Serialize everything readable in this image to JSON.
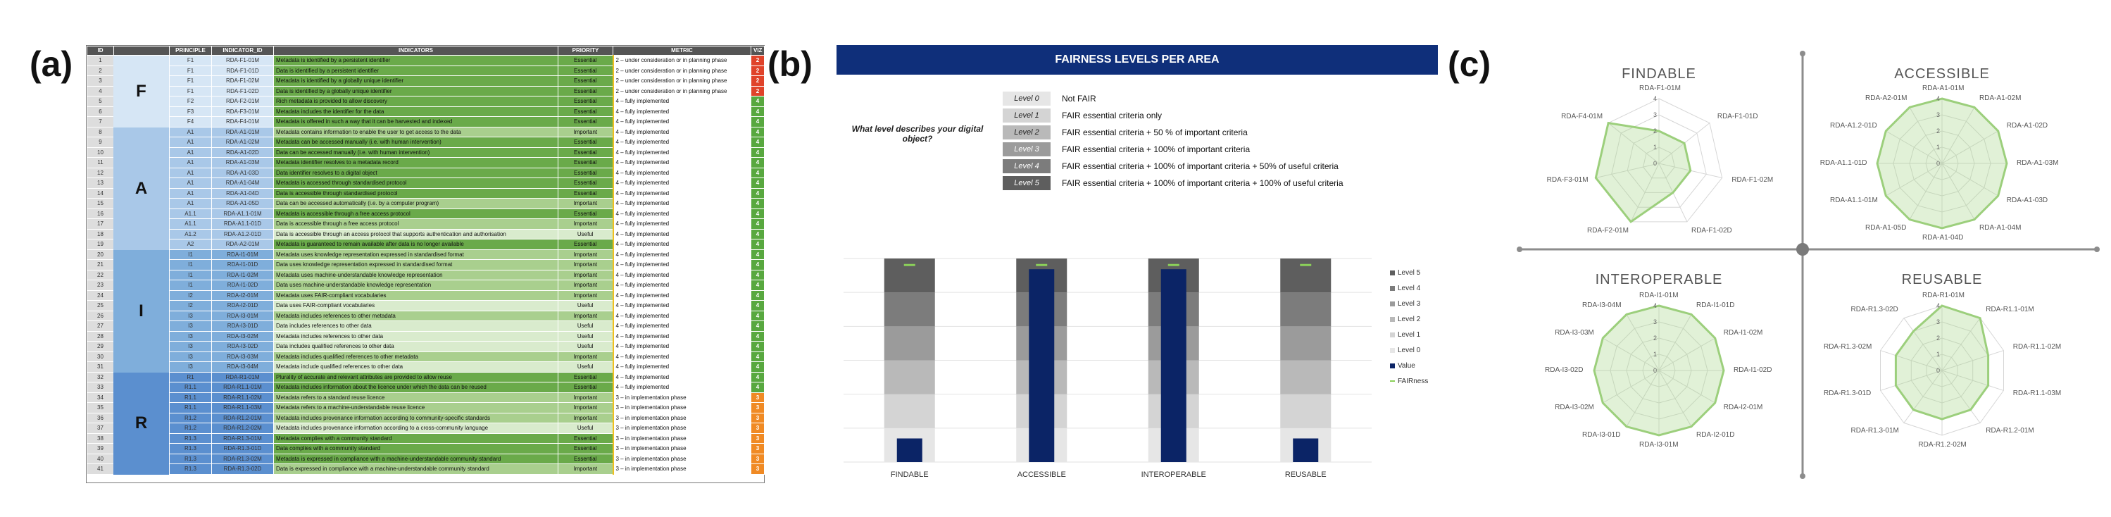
{
  "panels": {
    "a": "(a)",
    "b": "(b)",
    "c": "(c)"
  },
  "table": {
    "headers": [
      "ID",
      "",
      "PRINCIPLE",
      "INDICATOR_ID",
      "INDICATORS",
      "PRIORITY",
      "METRIC",
      "VIZ"
    ],
    "groups": [
      {
        "letter": "F",
        "first": 1,
        "last": 7,
        "color": "#d6e6f5"
      },
      {
        "letter": "A",
        "first": 8,
        "last": 19,
        "color": "#a9c8e8"
      },
      {
        "letter": "I",
        "first": 20,
        "last": 31,
        "color": "#7faedb"
      },
      {
        "letter": "R",
        "first": 32,
        "last": 41,
        "color": "#5b8fcf"
      }
    ],
    "rows": [
      {
        "id": "1",
        "principle": "F1",
        "indicator_id": "RDA-F1-01M",
        "indicator": "Metadata is identified by a persistent identifier",
        "priority": "Essential",
        "metric": "2 – under consideration or in planning phase",
        "viz": "2"
      },
      {
        "id": "2",
        "principle": "F1",
        "indicator_id": "RDA-F1-01D",
        "indicator": "Data is identified by a persistent identifier",
        "priority": "Essential",
        "metric": "2 – under consideration or in planning phase",
        "viz": "2"
      },
      {
        "id": "3",
        "principle": "F1",
        "indicator_id": "RDA-F1-02M",
        "indicator": "Metadata is identified by a globally unique identifier",
        "priority": "Essential",
        "metric": "2 – under consideration or in planning phase",
        "viz": "2"
      },
      {
        "id": "4",
        "principle": "F1",
        "indicator_id": "RDA-F1-02D",
        "indicator": "Data is identified by a globally unique identifier",
        "priority": "Essential",
        "metric": "2 – under consideration or in planning phase",
        "viz": "2"
      },
      {
        "id": "5",
        "principle": "F2",
        "indicator_id": "RDA-F2-01M",
        "indicator": "Rich metadata is provided to allow discovery",
        "priority": "Essential",
        "metric": "4 – fully implemented",
        "viz": "4"
      },
      {
        "id": "6",
        "principle": "F3",
        "indicator_id": "RDA-F3-01M",
        "indicator": "Metadata includes the identifier for the data",
        "priority": "Essential",
        "metric": "4 – fully implemented",
        "viz": "4"
      },
      {
        "id": "7",
        "principle": "F4",
        "indicator_id": "RDA-F4-01M",
        "indicator": "Metadata is offered in such a way that it can be harvested and indexed",
        "priority": "Essential",
        "metric": "4 – fully implemented",
        "viz": "4"
      },
      {
        "id": "8",
        "principle": "A1",
        "indicator_id": "RDA-A1-01M",
        "indicator": "Metadata contains information to enable the user to get access to the data",
        "priority": "Important",
        "metric": "4 – fully implemented",
        "viz": "4"
      },
      {
        "id": "9",
        "principle": "A1",
        "indicator_id": "RDA-A1-02M",
        "indicator": "Metadata can be accessed manually (i.e. with human intervention)",
        "priority": "Essential",
        "metric": "4 – fully implemented",
        "viz": "4"
      },
      {
        "id": "10",
        "principle": "A1",
        "indicator_id": "RDA-A1-02D",
        "indicator": "Data can be accessed manually (i.e. with human intervention)",
        "priority": "Essential",
        "metric": "4 – fully implemented",
        "viz": "4"
      },
      {
        "id": "11",
        "principle": "A1",
        "indicator_id": "RDA-A1-03M",
        "indicator": "Metadata identifier resolves to a metadata record",
        "priority": "Essential",
        "metric": "4 – fully implemented",
        "viz": "4"
      },
      {
        "id": "12",
        "principle": "A1",
        "indicator_id": "RDA-A1-03D",
        "indicator": "Data identifier resolves to a digital object",
        "priority": "Essential",
        "metric": "4 – fully implemented",
        "viz": "4"
      },
      {
        "id": "13",
        "principle": "A1",
        "indicator_id": "RDA-A1-04M",
        "indicator": "Metadata is accessed through standardised protocol",
        "priority": "Essential",
        "metric": "4 – fully implemented",
        "viz": "4"
      },
      {
        "id": "14",
        "principle": "A1",
        "indicator_id": "RDA-A1-04D",
        "indicator": "Data is accessible through standardised protocol",
        "priority": "Essential",
        "metric": "4 – fully implemented",
        "viz": "4"
      },
      {
        "id": "15",
        "principle": "A1",
        "indicator_id": "RDA-A1-05D",
        "indicator": "Data can be accessed automatically (i.e. by a computer program)",
        "priority": "Important",
        "metric": "4 – fully implemented",
        "viz": "4"
      },
      {
        "id": "16",
        "principle": "A1.1",
        "indicator_id": "RDA-A1.1-01M",
        "indicator": "Metadata is accessible through a free access protocol",
        "priority": "Essential",
        "metric": "4 – fully implemented",
        "viz": "4"
      },
      {
        "id": "17",
        "principle": "A1.1",
        "indicator_id": "RDA-A1.1-01D",
        "indicator": "Data is accessible through a free access protocol",
        "priority": "Important",
        "metric": "4 – fully implemented",
        "viz": "4"
      },
      {
        "id": "18",
        "principle": "A1.2",
        "indicator_id": "RDA-A1.2-01D",
        "indicator": "Data is accessible through an access protocol that supports authentication and authorisation",
        "priority": "Useful",
        "metric": "4 – fully implemented",
        "viz": "4"
      },
      {
        "id": "19",
        "principle": "A2",
        "indicator_id": "RDA-A2-01M",
        "indicator": "Metadata is guaranteed to remain available after data is no longer available",
        "priority": "Essential",
        "metric": "4 – fully implemented",
        "viz": "4"
      },
      {
        "id": "20",
        "principle": "I1",
        "indicator_id": "RDA-I1-01M",
        "indicator": "Metadata uses knowledge representation expressed in standardised format",
        "priority": "Important",
        "metric": "4 – fully implemented",
        "viz": "4"
      },
      {
        "id": "21",
        "principle": "I1",
        "indicator_id": "RDA-I1-01D",
        "indicator": "Data uses knowledge representation expressed in standardised format",
        "priority": "Important",
        "metric": "4 – fully implemented",
        "viz": "4"
      },
      {
        "id": "22",
        "principle": "I1",
        "indicator_id": "RDA-I1-02M",
        "indicator": "Metadata uses machine-understandable knowledge representation",
        "priority": "Important",
        "metric": "4 – fully implemented",
        "viz": "4"
      },
      {
        "id": "23",
        "principle": "I1",
        "indicator_id": "RDA-I1-02D",
        "indicator": "Data uses machine-understandable knowledge representation",
        "priority": "Important",
        "metric": "4 – fully implemented",
        "viz": "4"
      },
      {
        "id": "24",
        "principle": "I2",
        "indicator_id": "RDA-I2-01M",
        "indicator": "Metadata uses FAIR-compliant vocabularies",
        "priority": "Important",
        "metric": "4 – fully implemented",
        "viz": "4"
      },
      {
        "id": "25",
        "principle": "I2",
        "indicator_id": "RDA-I2-01D",
        "indicator": "Data uses FAIR-compliant vocabularies",
        "priority": "Useful",
        "metric": "4 – fully implemented",
        "viz": "4"
      },
      {
        "id": "26",
        "principle": "I3",
        "indicator_id": "RDA-I3-01M",
        "indicator": "Metadata includes references to other metadata",
        "priority": "Important",
        "metric": "4 – fully implemented",
        "viz": "4"
      },
      {
        "id": "27",
        "principle": "I3",
        "indicator_id": "RDA-I3-01D",
        "indicator": "Data includes references to other data",
        "priority": "Useful",
        "metric": "4 – fully implemented",
        "viz": "4"
      },
      {
        "id": "28",
        "principle": "I3",
        "indicator_id": "RDA-I3-02M",
        "indicator": "Metadata includes references to other data",
        "priority": "Useful",
        "metric": "4 – fully implemented",
        "viz": "4"
      },
      {
        "id": "29",
        "principle": "I3",
        "indicator_id": "RDA-I3-02D",
        "indicator": "Data includes qualified references to other data",
        "priority": "Useful",
        "metric": "4 – fully implemented",
        "viz": "4"
      },
      {
        "id": "30",
        "principle": "I3",
        "indicator_id": "RDA-I3-03M",
        "indicator": "Metadata includes qualified references to other metadata",
        "priority": "Important",
        "metric": "4 – fully implemented",
        "viz": "4"
      },
      {
        "id": "31",
        "principle": "I3",
        "indicator_id": "RDA-I3-04M",
        "indicator": "Metadata include qualified references to other data",
        "priority": "Useful",
        "metric": "4 – fully implemented",
        "viz": "4"
      },
      {
        "id": "32",
        "principle": "R1",
        "indicator_id": "RDA-R1-01M",
        "indicator": "Plurality of accurate and relevant attributes are provided to allow reuse",
        "priority": "Essential",
        "metric": "4 – fully implemented",
        "viz": "4"
      },
      {
        "id": "33",
        "principle": "R1.1",
        "indicator_id": "RDA-R1.1-01M",
        "indicator": "Metadata includes information about the licence under which the data can be reused",
        "priority": "Essential",
        "metric": "4 – fully implemented",
        "viz": "4"
      },
      {
        "id": "34",
        "principle": "R1.1",
        "indicator_id": "RDA-R1.1-02M",
        "indicator": "Metadata refers to a standard reuse licence",
        "priority": "Important",
        "metric": "3 – in implementation phase",
        "viz": "3"
      },
      {
        "id": "35",
        "principle": "R1.1",
        "indicator_id": "RDA-R1.1-03M",
        "indicator": "Metadata refers to a machine-understandable reuse licence",
        "priority": "Important",
        "metric": "3 – in implementation phase",
        "viz": "3"
      },
      {
        "id": "36",
        "principle": "R1.2",
        "indicator_id": "RDA-R1.2-01M",
        "indicator": "Metadata includes provenance information according to community-specific standards",
        "priority": "Important",
        "metric": "3 – in implementation phase",
        "viz": "3"
      },
      {
        "id": "37",
        "principle": "R1.2",
        "indicator_id": "RDA-R1.2-02M",
        "indicator": "Metadata includes provenance information according to a cross-community language",
        "priority": "Useful",
        "metric": "3 – in implementation phase",
        "viz": "3"
      },
      {
        "id": "38",
        "principle": "R1.3",
        "indicator_id": "RDA-R1.3-01M",
        "indicator": "Metadata complies with a community standard",
        "priority": "Essential",
        "metric": "3 – in implementation phase",
        "viz": "3"
      },
      {
        "id": "39",
        "principle": "R1.3",
        "indicator_id": "RDA-R1.3-01D",
        "indicator": "Data complies with a community standard",
        "priority": "Essential",
        "metric": "3 – in implementation phase",
        "viz": "3"
      },
      {
        "id": "40",
        "principle": "R1.3",
        "indicator_id": "RDA-R1.3-02M",
        "indicator": "Metadata is expressed in compliance with a machine-understandable community standard",
        "priority": "Essential",
        "metric": "3 – in implementation phase",
        "viz": "3"
      },
      {
        "id": "41",
        "principle": "R1.3",
        "indicator_id": "RDA-R1.3-02D",
        "indicator": "Data is expressed in compliance with a machine-understandable community standard",
        "priority": "Important",
        "metric": "3 – in implementation phase",
        "viz": "3"
      }
    ],
    "colors": {
      "essential": "#6aaa4a",
      "important": "#a9cf8e",
      "useful": "#d9ebcd",
      "viz2": "#e0432a",
      "viz3": "#f08a24",
      "viz4": "#58a83f"
    }
  },
  "fairness_levels": {
    "title": "FAIRNESS LEVELS PER AREA",
    "question": "What level describes your digital object?",
    "levels": [
      {
        "label": "Level 0",
        "desc": "Not FAIR",
        "color": "#e6e6e6"
      },
      {
        "label": "Level 1",
        "desc": "FAIR essential criteria only",
        "color": "#d4d4d4"
      },
      {
        "label": "Level 2",
        "desc": "FAIR essential criteria + 50 % of important criteria",
        "color": "#b9b9b9"
      },
      {
        "label": "Level 3",
        "desc": "FAIR essential criteria + 100% of important criteria",
        "color": "#9b9b9b"
      },
      {
        "label": "Level 4",
        "desc": "FAIR essential criteria + 100% of important criteria + 50% of useful criteria",
        "color": "#7c7c7c"
      },
      {
        "label": "Level 5",
        "desc": "FAIR essential criteria + 100% of important criteria + 100% of useful criteria",
        "color": "#5e5e5e"
      }
    ],
    "legend": [
      "Level 5",
      "Level 4",
      "Level 3",
      "Level 2",
      "Level 1",
      "Level 0",
      "Value",
      "FAIRness"
    ]
  },
  "chart_data": {
    "type": "bar",
    "categories": [
      "FINDABLE",
      "ACCESSIBLE",
      "INTEROPERABLE",
      "REUSABLE"
    ],
    "stack_levels": [
      "Level 0",
      "Level 1",
      "Level 2",
      "Level 3",
      "Level 4",
      "Level 5"
    ],
    "series": [
      {
        "name": "Value",
        "values": [
          0.6,
          4.9,
          4.9,
          0.6
        ],
        "color": "#0b2466"
      },
      {
        "name": "FAIRness",
        "values": [
          4.9,
          4.9,
          4.9,
          4.9
        ],
        "color": "#8bd05a"
      }
    ],
    "ylim": [
      0,
      5
    ]
  },
  "radar_charts": [
    {
      "title": "FINDABLE",
      "axes": [
        "RDA-F1-01M",
        "RDA-F1-01D",
        "RDA-F1-02M",
        "RDA-F1-02D",
        "RDA-F2-01M",
        "RDA-F3-01M",
        "RDA-F4-01M"
      ],
      "values": [
        2,
        2,
        2,
        2,
        4,
        4,
        4
      ],
      "ticks": [
        "4",
        "3",
        "2",
        "1",
        "0"
      ]
    },
    {
      "title": "ACCESSIBLE",
      "axes": [
        "RDA-A1-01M",
        "RDA-A1-02M",
        "RDA-A1-02D",
        "RDA-A1-03M",
        "RDA-A1-03D",
        "RDA-A1-04M",
        "RDA-A1-04D",
        "RDA-A1-05D",
        "RDA-A1.1-01M",
        "RDA-A1.1-01D",
        "RDA-A1.2-01D",
        "RDA-A2-01M"
      ],
      "values": [
        4,
        4,
        4,
        4,
        4,
        4,
        4,
        4,
        4,
        4,
        4,
        4
      ],
      "ticks": [
        "4",
        "3",
        "2",
        "1",
        "0"
      ]
    },
    {
      "title": "INTEROPERABLE",
      "axes": [
        "RDA-I1-01M",
        "RDA-I1-01D",
        "RDA-I1-02M",
        "RDA-I1-02D",
        "RDA-I2-01M",
        "RDA-I2-01D",
        "RDA-I3-01M",
        "RDA-I3-01D",
        "RDA-I3-02M",
        "RDA-I3-02D",
        "RDA-I3-03M",
        "RDA-I3-04M"
      ],
      "values": [
        4,
        4,
        4,
        4,
        4,
        4,
        4,
        4,
        4,
        4,
        4,
        4
      ],
      "ticks": [
        "4",
        "3",
        "2",
        "1",
        "0"
      ]
    },
    {
      "title": "REUSABLE",
      "axes": [
        "RDA-R1-01M",
        "RDA-R1.1-01M",
        "RDA-R1.1-02M",
        "RDA-R1.1-03M",
        "RDA-R1.2-01M",
        "RDA-R1.2-02M",
        "RDA-R1.3-01M",
        "RDA-R1.3-01D",
        "RDA-R1.3-02M",
        "RDA-R1.3-02D"
      ],
      "values": [
        4,
        4,
        3,
        3,
        3,
        3,
        3,
        3,
        3,
        3
      ],
      "ticks": [
        "4",
        "3",
        "2",
        "1",
        "0"
      ]
    }
  ]
}
